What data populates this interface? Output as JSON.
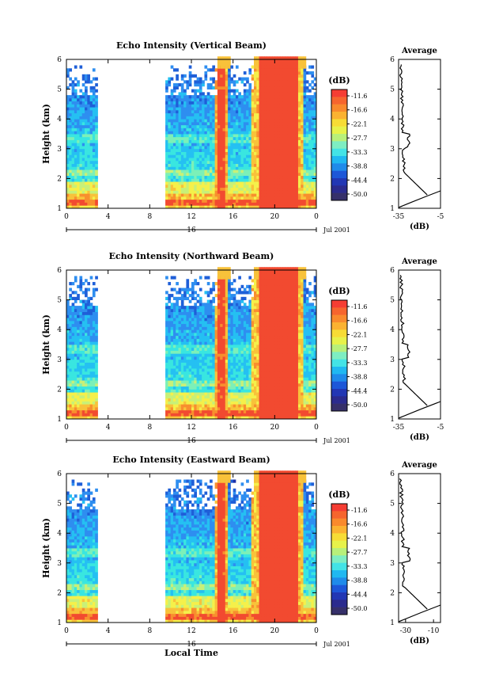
{
  "chart_data": [
    {
      "type": "heatmap",
      "title": "Echo Intensity (Vertical Beam)",
      "ylabel": "Height (km)",
      "xlabel": "",
      "xlim": [
        0,
        24
      ],
      "ylim": [
        1,
        6
      ],
      "x_ticks": [
        "0",
        "4",
        "8",
        "12",
        "16",
        "20",
        "0"
      ],
      "y_ticks": [
        "1",
        "2",
        "3",
        "4",
        "5",
        "6"
      ],
      "date_label": "16",
      "month_year": "Jul 2001",
      "colorbar": {
        "unit": "(dB)",
        "labels": [
          "-11.6",
          "-16.6",
          "-22.1",
          "-27.7",
          "-33.3",
          "-38.8",
          "-44.4",
          "-50.0"
        ]
      },
      "data_gaps": [
        [
          3.0,
          9.4
        ]
      ],
      "profile": {
        "title": "Average",
        "xlabel": "(dB)",
        "x_ticks": [
          "-35",
          "-5"
        ],
        "xlim": [
          -35,
          -5
        ],
        "y_ticks": [
          "1",
          "2",
          "3",
          "4",
          "5",
          "6"
        ]
      }
    },
    {
      "type": "heatmap",
      "title": "Echo Intensity (Northward Beam)",
      "ylabel": "Height (km)",
      "xlabel": "",
      "xlim": [
        0,
        24
      ],
      "ylim": [
        1,
        6
      ],
      "x_ticks": [
        "0",
        "4",
        "8",
        "12",
        "16",
        "20",
        "0"
      ],
      "y_ticks": [
        "1",
        "2",
        "3",
        "4",
        "5",
        "6"
      ],
      "date_label": "16",
      "month_year": "Jul 2001",
      "colorbar": {
        "unit": "(dB)",
        "labels": [
          "-11.6",
          "-16.6",
          "-22.1",
          "-27.7",
          "-33.3",
          "-38.8",
          "-44.4",
          "-50.0"
        ]
      },
      "data_gaps": [
        [
          3.0,
          9.4
        ]
      ],
      "profile": {
        "title": "Average",
        "xlabel": "(dB)",
        "x_ticks": [
          "-35",
          "-5"
        ],
        "xlim": [
          -35,
          -5
        ],
        "y_ticks": [
          "1",
          "2",
          "3",
          "4",
          "5",
          "6"
        ]
      }
    },
    {
      "type": "heatmap",
      "title": "Echo Intensity (Eastward Beam)",
      "ylabel": "Height (km)",
      "xlabel": "Local Time",
      "xlim": [
        0,
        24
      ],
      "ylim": [
        1,
        6
      ],
      "x_ticks": [
        "0",
        "4",
        "8",
        "12",
        "16",
        "20",
        "0"
      ],
      "y_ticks": [
        "1",
        "2",
        "3",
        "4",
        "5",
        "6"
      ],
      "date_label": "16",
      "month_year": "Jul 2001",
      "colorbar": {
        "unit": "(dB)",
        "labels": [
          "-11.6",
          "-16.6",
          "-22.1",
          "-27.7",
          "-33.3",
          "-38.8",
          "-44.4",
          "-50.0"
        ]
      },
      "data_gaps": [
        [
          3.0,
          9.4
        ]
      ],
      "profile": {
        "title": "Average",
        "xlabel": "(dB)",
        "x_ticks": [
          "-30",
          "-10"
        ],
        "xlim": [
          -35,
          -5
        ],
        "y_ticks": [
          "1",
          "2",
          "3",
          "4",
          "5",
          "6"
        ]
      }
    }
  ]
}
